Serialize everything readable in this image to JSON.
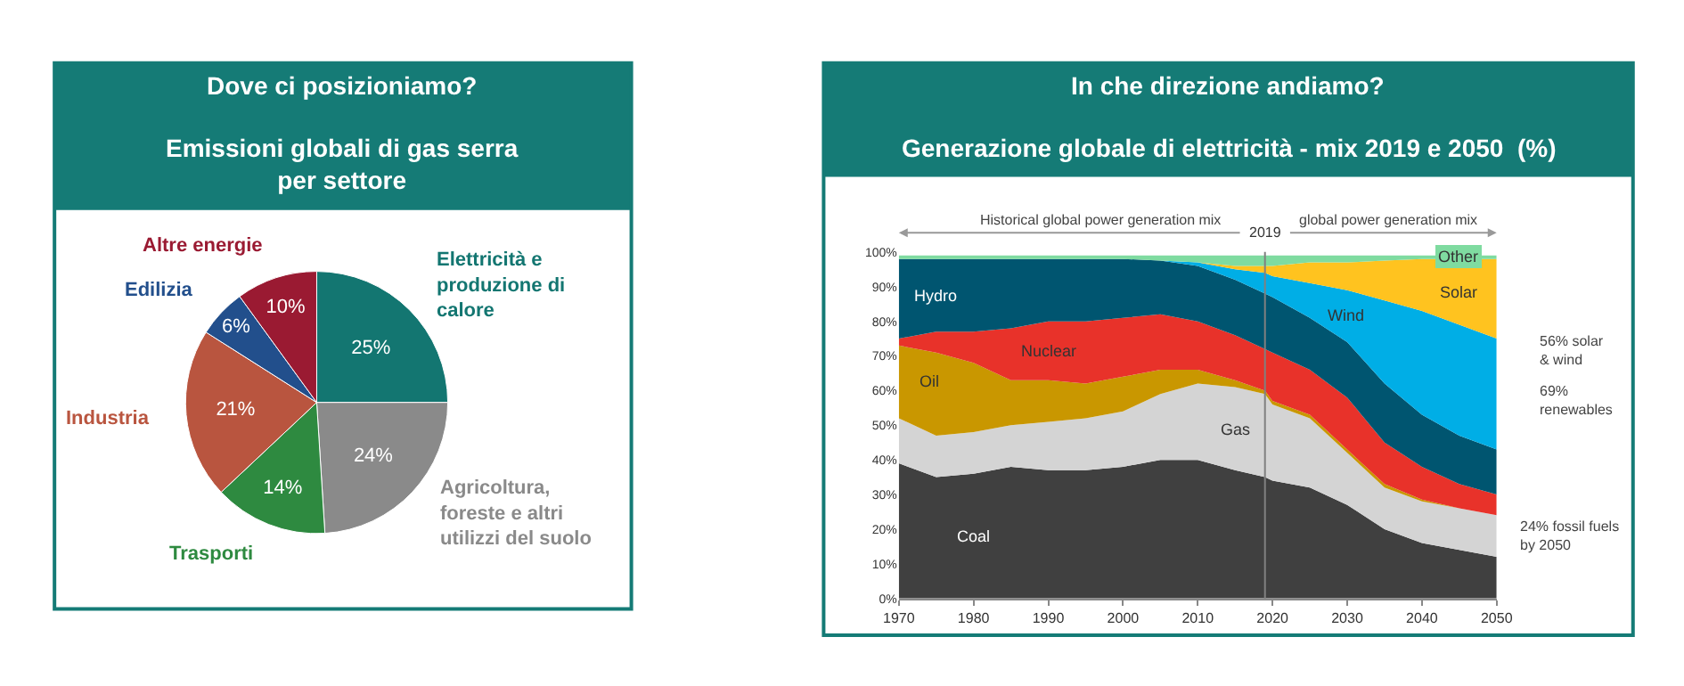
{
  "chart_data": [
    {
      "type": "pie",
      "title": "Dove ci posizioniamo?",
      "subtitle": "Emissioni globali di gas serra\nper settore",
      "categories": [
        "Elettricità e\nproduzione di\ncalore",
        "Agricoltura,\nforeste e altri\nutilizzi del suolo",
        "Trasporti",
        "Industria",
        "Edilizia",
        "Altre energie"
      ],
      "values": [
        25,
        24,
        14,
        21,
        6,
        10
      ],
      "value_labels": [
        "25%",
        "24%",
        "14%",
        "21%",
        "6%",
        "10%"
      ],
      "colors": [
        "#137671",
        "#8a8a8a",
        "#2e8a40",
        "#b9553f",
        "#224f8c",
        "#9a1a32"
      ]
    },
    {
      "type": "area",
      "stacked": true,
      "title": "In che direzione andiamo?",
      "subtitle": "Generazione globale di elettricità - mix 2019 e 2050  (%)",
      "x": [
        1970,
        1975,
        1980,
        1985,
        1990,
        1995,
        2000,
        2005,
        2010,
        2015,
        2019,
        2020,
        2025,
        2030,
        2035,
        2040,
        2045,
        2050
      ],
      "series": [
        {
          "name": "Coal",
          "color": "#404040",
          "values": [
            39,
            35,
            36,
            38,
            37,
            37,
            38,
            40,
            40,
            37,
            35,
            34,
            32,
            27,
            20,
            16,
            14,
            12
          ]
        },
        {
          "name": "Gas",
          "color": "#d4d4d4",
          "values": [
            13,
            12,
            12,
            12,
            14,
            15,
            16,
            19,
            22,
            24,
            24,
            22,
            20,
            15,
            12,
            12,
            12,
            12
          ]
        },
        {
          "name": "Oil",
          "color": "#c99700",
          "values": [
            21,
            24,
            20,
            13,
            12,
            10,
            10,
            7,
            4,
            2,
            1,
            1,
            1,
            1,
            1,
            0.5,
            0,
            0
          ]
        },
        {
          "name": "Nuclear",
          "color": "#e8322a",
          "values": [
            2,
            6,
            9,
            15,
            17,
            18,
            17,
            16,
            14,
            13,
            12,
            14,
            13,
            15,
            12,
            9.5,
            7,
            6
          ]
        },
        {
          "name": "Hydro",
          "color": "#005570",
          "values": [
            23,
            21,
            21,
            20,
            18,
            18,
            17,
            15.5,
            16,
            16,
            16,
            16,
            15,
            16,
            17,
            15,
            14,
            13
          ]
        },
        {
          "name": "Wind",
          "color": "#00aee6",
          "values": [
            0,
            0,
            0,
            0,
            0,
            0,
            0,
            0,
            1,
            3,
            6,
            6,
            10,
            15,
            24,
            30,
            32,
            32
          ]
        },
        {
          "name": "Solar",
          "color": "#ffc31f",
          "values": [
            0,
            0,
            0,
            0,
            0,
            0,
            0,
            0,
            0,
            1,
            2,
            3,
            6,
            8,
            11.5,
            15,
            19,
            23
          ]
        },
        {
          "name": "Other",
          "color": "#7fdba0",
          "values": [
            1,
            1,
            1,
            1,
            1,
            1,
            1,
            1.5,
            2,
            3,
            3,
            3,
            2,
            2,
            1.5,
            1,
            1,
            1
          ]
        }
      ],
      "xlim": [
        1970,
        2050
      ],
      "xticks": [
        1970,
        1980,
        1990,
        2000,
        2010,
        2020,
        2030,
        2040,
        2050
      ],
      "ylim": [
        0,
        100
      ],
      "yticks": [
        {
          "value": 0,
          "label": "0%"
        },
        {
          "value": 10,
          "label": "10%"
        },
        {
          "value": 20,
          "label": "20%"
        },
        {
          "value": 30,
          "label": "30%"
        },
        {
          "value": 40,
          "label": "40%"
        },
        {
          "value": 50,
          "label": "50%"
        },
        {
          "value": 60,
          "label": "60%"
        },
        {
          "value": 70,
          "label": "70%"
        },
        {
          "value": 80,
          "label": "80%"
        },
        {
          "value": 90,
          "label": "90%"
        },
        {
          "value": 100,
          "label": "100%"
        }
      ],
      "ref_lines": [
        {
          "axis": "x",
          "value": 2019,
          "label": "2019",
          "color": "#808080"
        }
      ],
      "annotations": [
        "Historical global power generation mix",
        "global power generation mix",
        "56% solar\n& wind",
        "69%\nrenewables",
        "24% fossil fuels\nby 2050"
      ]
    }
  ]
}
